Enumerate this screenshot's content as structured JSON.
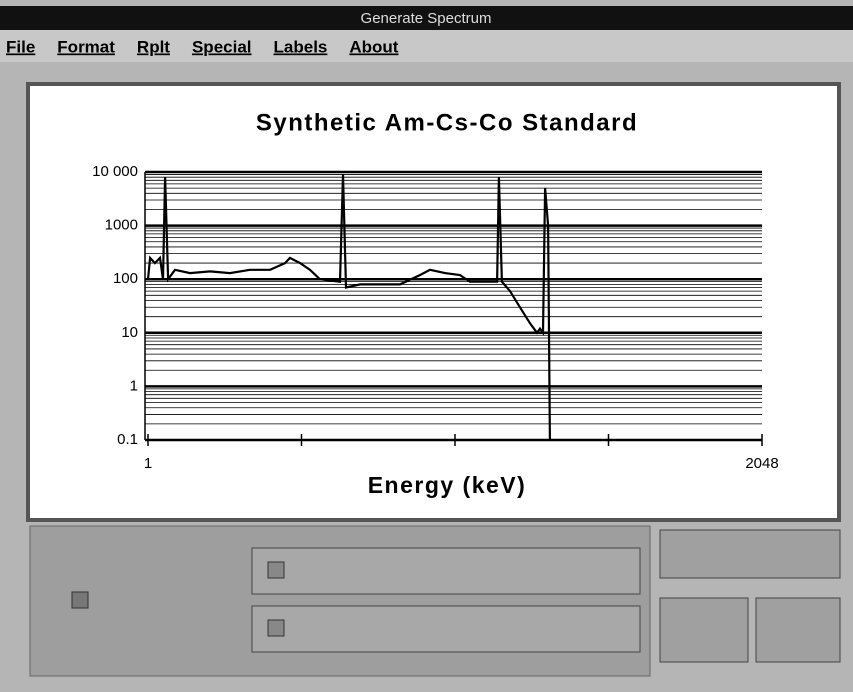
{
  "window": {
    "title": "Generate Spectrum"
  },
  "menu": [
    "File",
    "Format",
    "Rplt",
    "Special",
    "Labels",
    "About"
  ],
  "chart_data": {
    "type": "line",
    "title": "Synthetic Am-Cs-Co Standard",
    "x_label": "Energy (keV)",
    "x": [
      1,
      8,
      24,
      41,
      51,
      58,
      68,
      91,
      141,
      208,
      274,
      341,
      408,
      458,
      474,
      508,
      541,
      574,
      641,
      651,
      661,
      708,
      774,
      841,
      908,
      941,
      991,
      1041,
      1074,
      1165,
      1171,
      1181,
      1208,
      1241,
      1275,
      1298,
      1308,
      1318,
      1325,
      1335,
      1341
    ],
    "series": [
      {
        "color": "#000000",
        "values": [
          100,
          250,
          200,
          250,
          100,
          8000,
          100,
          150,
          130,
          140,
          130,
          150,
          150,
          200,
          250,
          200,
          150,
          100,
          90,
          9000,
          70,
          80,
          80,
          80,
          120,
          150,
          130,
          120,
          90,
          90,
          8000,
          90,
          60,
          30,
          15,
          10,
          12,
          10,
          5000,
          1000,
          0.1
        ]
      }
    ],
    "xlim": [
      1,
      2048
    ],
    "xticks": [
      1,
      2048
    ],
    "ylim": [
      0.1,
      10000
    ],
    "yticks": [
      {
        "value": 10000,
        "label": "10 000"
      },
      1000,
      100,
      10,
      1,
      0.1
    ],
    "log_y": true,
    "grid": true
  }
}
